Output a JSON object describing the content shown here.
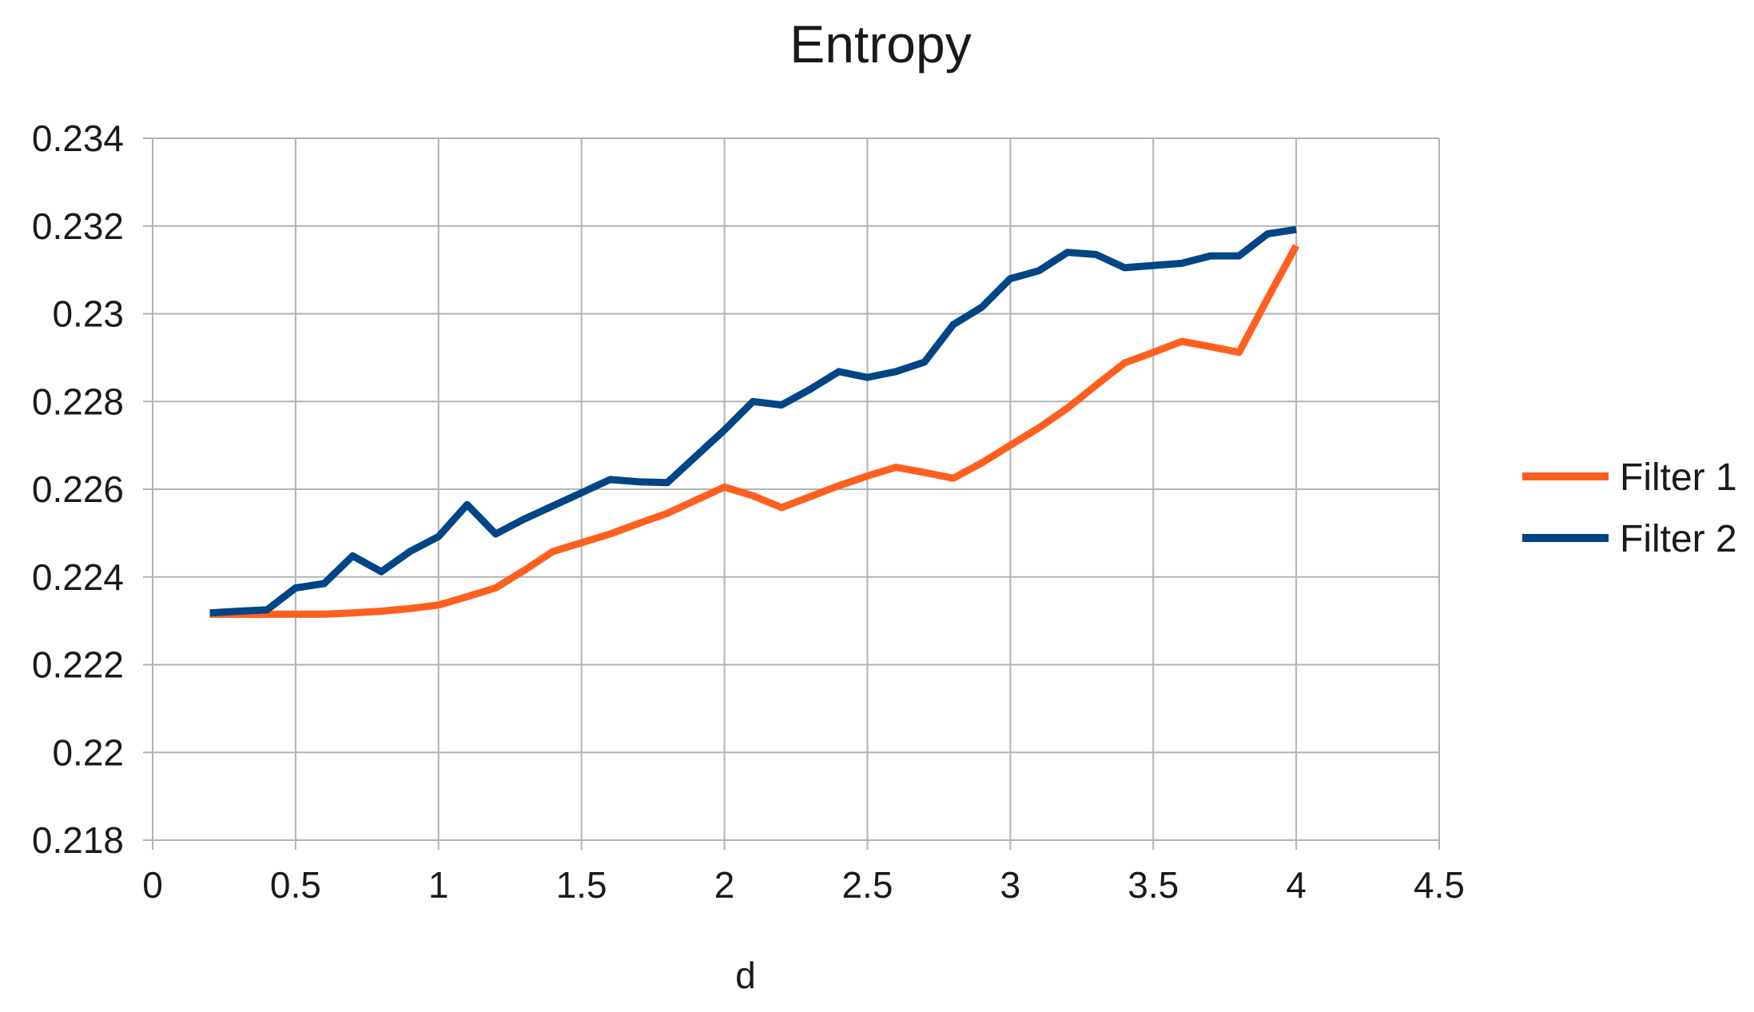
{
  "chart_data": {
    "type": "line",
    "title": "Entropy",
    "xlabel": "d",
    "ylabel": "",
    "xlim": [
      0,
      4.5
    ],
    "ylim": [
      0.218,
      0.234
    ],
    "x_ticks": [
      "0",
      "0.5",
      "1",
      "1.5",
      "2",
      "2.5",
      "3",
      "3.5",
      "4",
      "4.5"
    ],
    "y_ticks": [
      "0.218",
      "0.22",
      "0.222",
      "0.224",
      "0.226",
      "0.228",
      "0.23",
      "0.232",
      "0.234"
    ],
    "grid": true,
    "legend_position": "right",
    "x": [
      0.2,
      0.3,
      0.4,
      0.5,
      0.6,
      0.7,
      0.8,
      0.9,
      1.0,
      1.1,
      1.2,
      1.3,
      1.4,
      1.5,
      1.6,
      1.7,
      1.8,
      1.9,
      2.0,
      2.1,
      2.2,
      2.3,
      2.4,
      2.5,
      2.6,
      2.7,
      2.8,
      2.9,
      3.0,
      3.1,
      3.2,
      3.3,
      3.4,
      3.5,
      3.6,
      3.7,
      3.8,
      3.9,
      4.0
    ],
    "series": [
      {
        "name": "Filter 1",
        "color": "#ff5f1f",
        "values": [
          0.22315,
          0.22315,
          0.22315,
          0.22315,
          0.22315,
          0.22318,
          0.22322,
          0.22328,
          0.22336,
          0.22355,
          0.22375,
          0.22415,
          0.22458,
          0.22478,
          0.22498,
          0.22522,
          0.22545,
          0.22575,
          0.22605,
          0.22585,
          0.22558,
          0.22583,
          0.22608,
          0.2263,
          0.2265,
          0.22638,
          0.22625,
          0.2266,
          0.227,
          0.2274,
          0.22785,
          0.22837,
          0.22888,
          0.22912,
          0.22937,
          0.22925,
          0.22912,
          0.23035,
          0.23155
        ]
      },
      {
        "name": "Filter 2",
        "color": "#004586",
        "values": [
          0.22318,
          0.22322,
          0.22325,
          0.22375,
          0.22385,
          0.22448,
          0.22412,
          0.22458,
          0.22492,
          0.22565,
          0.22498,
          0.22532,
          0.22562,
          0.22592,
          0.22622,
          0.22617,
          0.22615,
          0.22675,
          0.22735,
          0.228,
          0.22792,
          0.22828,
          0.22868,
          0.22855,
          0.22868,
          0.2289,
          0.22975,
          0.23015,
          0.2308,
          0.23098,
          0.2314,
          0.23135,
          0.23105,
          0.2311,
          0.23115,
          0.23132,
          0.23132,
          0.23182,
          0.23192
        ]
      }
    ]
  }
}
